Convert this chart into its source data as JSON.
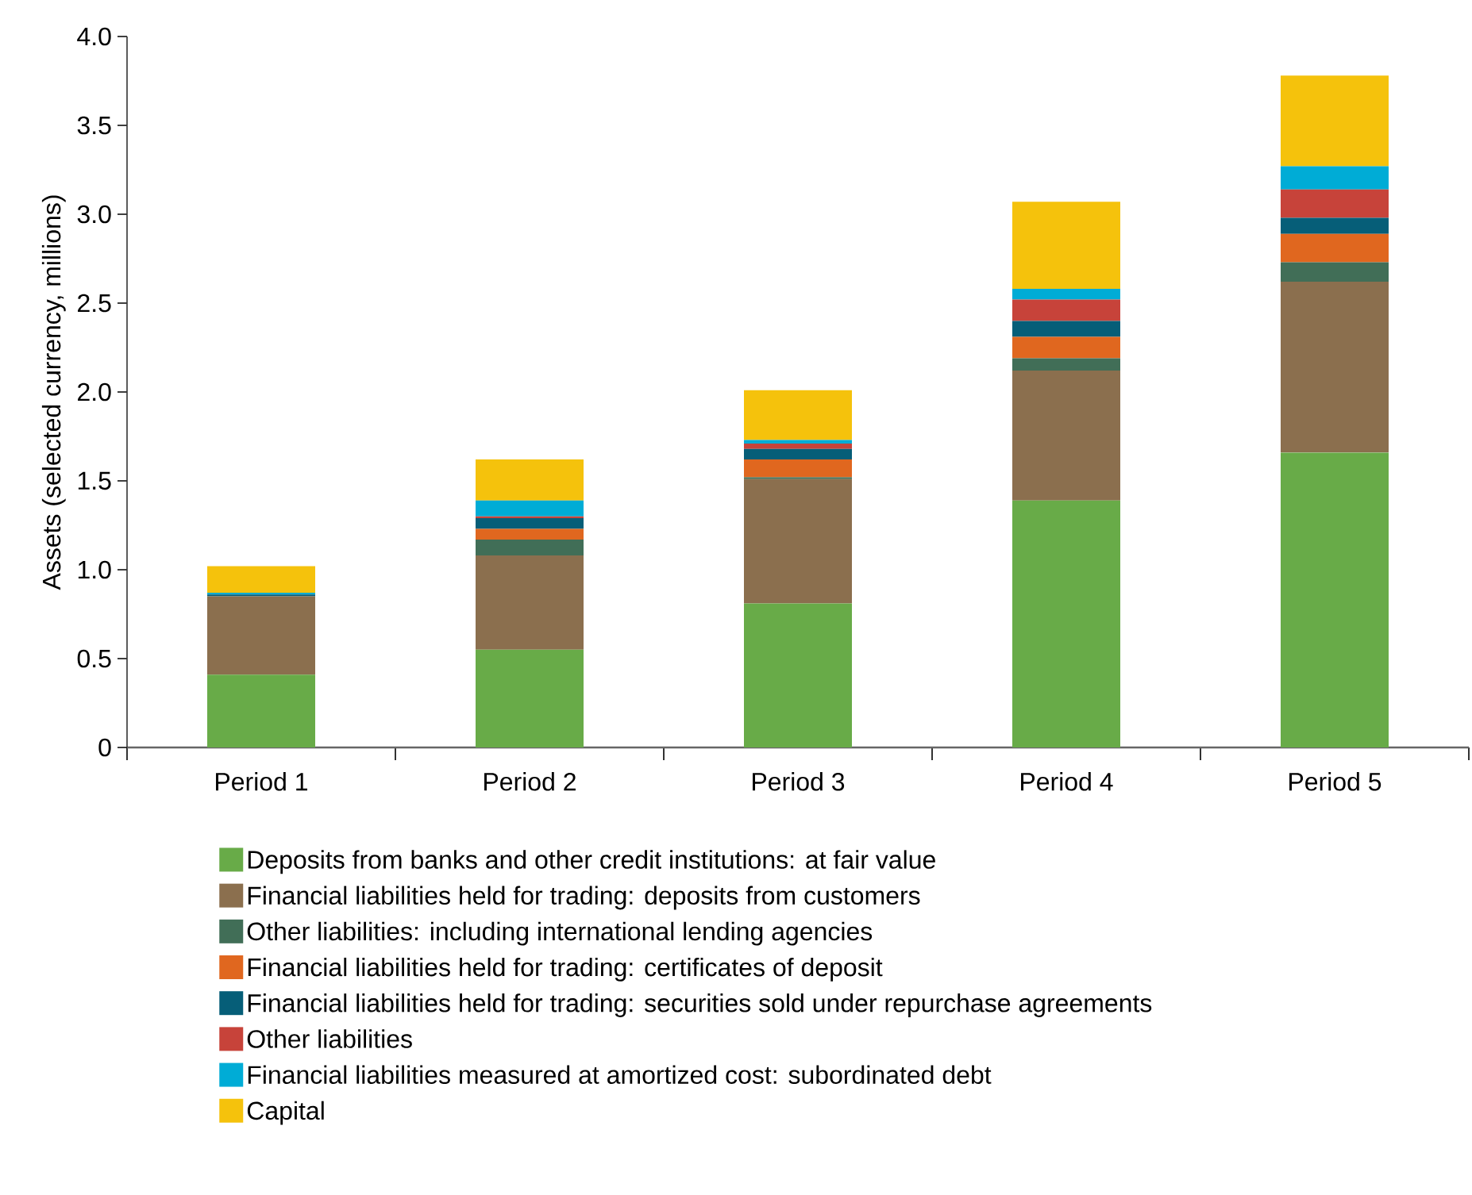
{
  "chart_data": {
    "type": "bar",
    "stacked": true,
    "ylabel": "Assets (selected currency, millions)",
    "categories": [
      "Period 1",
      "Period 2",
      "Period 3",
      "Period 4",
      "Period 5"
    ],
    "ylim": [
      0,
      4
    ],
    "yticks": [
      0,
      0.5,
      {
        "value": 1,
        "label": "1.0"
      },
      1.5,
      {
        "value": 2,
        "label": "2.0"
      },
      2.5,
      {
        "value": 3,
        "label": "3.0"
      },
      3.5,
      {
        "value": 4,
        "label": "4.0"
      }
    ],
    "legend": "bottom",
    "series": [
      {
        "name": "Deposits from banks and other credit institutions: at fair value",
        "color": "#68ab48",
        "values": [
          0.41,
          0.55,
          0.81,
          1.39,
          1.66
        ]
      },
      {
        "name": "Financial liabilities held for trading: deposits from customers",
        "color": "#8b6f4e",
        "values": [
          0.44,
          0.53,
          0.7,
          0.73,
          0.96
        ]
      },
      {
        "name": "Other liabilities: including international lending agencies",
        "color": "#416e57",
        "values": [
          0,
          0.09,
          0.01,
          0.07,
          0.11
        ]
      },
      {
        "name": "Financial liabilities held for trading: certificates of deposit",
        "color": "#e0671f",
        "values": [
          0,
          0.06,
          0.1,
          0.12,
          0.16
        ]
      },
      {
        "name": "Financial liabilities held for trading: securities sold under repurchase agreements",
        "color": "#065e78",
        "values": [
          0.01,
          0.06,
          0.06,
          0.09,
          0.09
        ]
      },
      {
        "name": "Other liabilities",
        "color": "#c7433a",
        "values": [
          0,
          0.01,
          0.03,
          0.12,
          0.16
        ]
      },
      {
        "name": "Financial liabilities measured at amortized cost: subordinated debt",
        "color": "#00acd6",
        "values": [
          0.01,
          0.09,
          0.02,
          0.06,
          0.13
        ]
      },
      {
        "name": "Capital",
        "color": "#f5c20c",
        "values": [
          0.15,
          0.23,
          0.28,
          0.49,
          0.51
        ]
      }
    ]
  }
}
